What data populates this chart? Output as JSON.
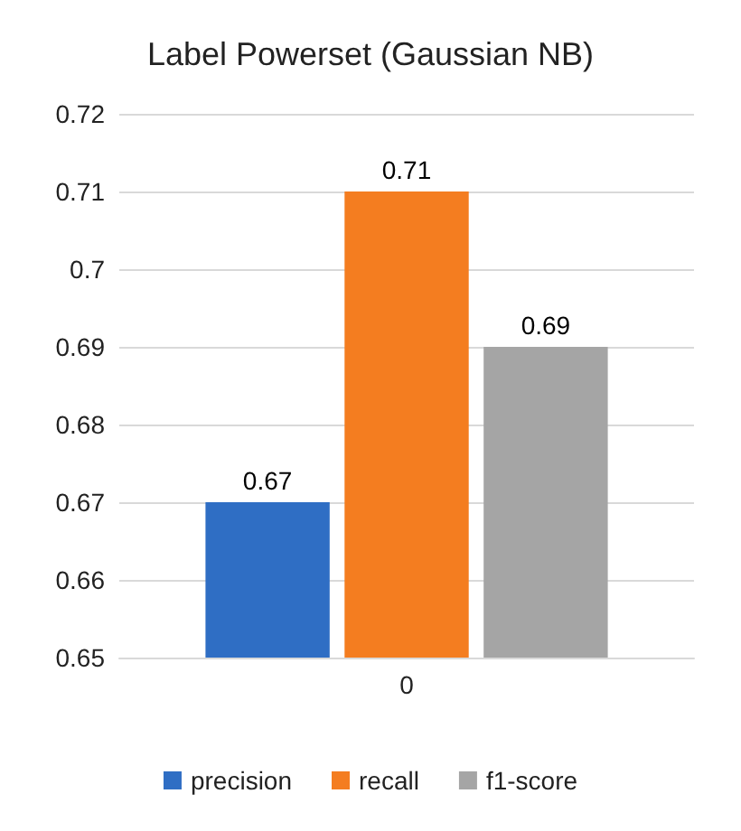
{
  "chart_data": {
    "type": "bar",
    "title": "Label Powerset (Gaussian NB)",
    "categories": [
      "0"
    ],
    "series": [
      {
        "name": "precision",
        "color": "#2f6ec4",
        "values": [
          0.67
        ]
      },
      {
        "name": "recall",
        "color": "#f47d20",
        "values": [
          0.71
        ]
      },
      {
        "name": "f1-score",
        "color": "#a5a5a5",
        "values": [
          0.69
        ]
      }
    ],
    "ylim": [
      0.65,
      0.72
    ],
    "yticks": [
      0.65,
      0.66,
      0.67,
      0.68,
      0.69,
      0.7,
      0.71,
      0.72
    ],
    "grid": "y",
    "legend": "bottom",
    "data_labels": true
  }
}
